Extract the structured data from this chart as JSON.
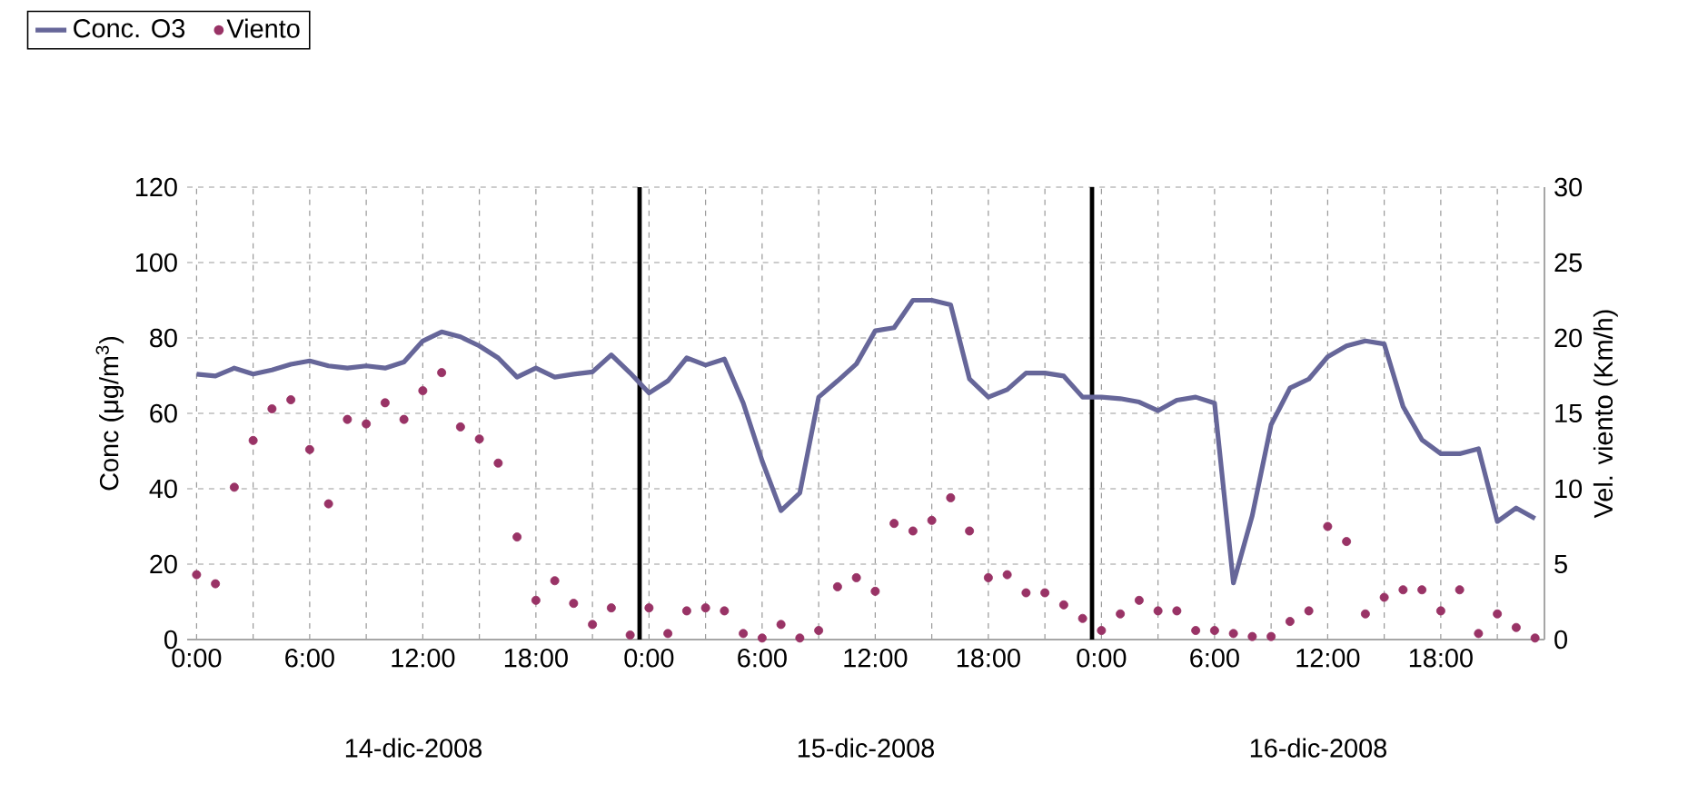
{
  "chart_data": {
    "type": "line",
    "ylabel": "Conc (μg/m$^{3}$)",
    "y2label": "Vel. viento (Km/h)",
    "annotations": [
      "14-dic-2008",
      "15-dic-2008",
      "16-dic-2008"
    ],
    "x": [
      "2008-12-14T00:00",
      "2008-12-14T01:00",
      "2008-12-14T02:00",
      "2008-12-14T03:00",
      "2008-12-14T04:00",
      "2008-12-14T05:00",
      "2008-12-14T06:00",
      "2008-12-14T07:00",
      "2008-12-14T08:00",
      "2008-12-14T09:00",
      "2008-12-14T10:00",
      "2008-12-14T11:00",
      "2008-12-14T12:00",
      "2008-12-14T13:00",
      "2008-12-14T14:00",
      "2008-12-14T15:00",
      "2008-12-14T16:00",
      "2008-12-14T17:00",
      "2008-12-14T18:00",
      "2008-12-14T19:00",
      "2008-12-14T20:00",
      "2008-12-14T21:00",
      "2008-12-14T22:00",
      "2008-12-14T23:00",
      "2008-12-15T00:00",
      "2008-12-15T01:00",
      "2008-12-15T02:00",
      "2008-12-15T03:00",
      "2008-12-15T04:00",
      "2008-12-15T05:00",
      "2008-12-15T06:00",
      "2008-12-15T07:00",
      "2008-12-15T08:00",
      "2008-12-15T09:00",
      "2008-12-15T10:00",
      "2008-12-15T11:00",
      "2008-12-15T12:00",
      "2008-12-15T13:00",
      "2008-12-15T14:00",
      "2008-12-15T15:00",
      "2008-12-15T16:00",
      "2008-12-15T17:00",
      "2008-12-15T18:00",
      "2008-12-15T19:00",
      "2008-12-15T20:00",
      "2008-12-15T21:00",
      "2008-12-15T22:00",
      "2008-12-15T23:00",
      "2008-12-16T00:00",
      "2008-12-16T01:00",
      "2008-12-16T02:00",
      "2008-12-16T03:00",
      "2008-12-16T04:00",
      "2008-12-16T05:00",
      "2008-12-16T06:00",
      "2008-12-16T07:00",
      "2008-12-16T08:00",
      "2008-12-16T09:00",
      "2008-12-16T10:00",
      "2008-12-16T11:00",
      "2008-12-16T12:00",
      "2008-12-16T13:00",
      "2008-12-16T14:00",
      "2008-12-16T15:00",
      "2008-12-16T16:00",
      "2008-12-16T17:00",
      "2008-12-16T18:00",
      "2008-12-16T19:00",
      "2008-12-16T20:00",
      "2008-12-16T21:00",
      "2008-12-16T22:00",
      "2008-12-16T23:00"
    ],
    "series": [
      {
        "name": "Conc. O3",
        "color": "#666699",
        "marker": "none",
        "values": [
          70.4,
          69.9,
          72,
          70.4,
          71.5,
          73,
          73.9,
          72.6,
          72,
          72.6,
          72,
          73.6,
          79.2,
          81.6,
          80.3,
          77.9,
          74.7,
          69.6,
          72,
          69.6,
          70.4,
          71,
          75.5,
          70.7,
          65.4,
          68.6,
          74.7,
          72.8,
          74.4,
          62.7,
          47.4,
          34.2,
          38.9,
          64.3,
          68.6,
          73.1,
          81.9,
          82.7,
          90,
          90,
          88.8,
          69.1,
          64.3,
          66.3,
          70.7,
          70.7,
          69.9,
          64.3,
          64.3,
          63.9,
          63,
          60.7,
          63.5,
          64.3,
          62.7,
          15,
          32.9,
          57,
          66.7,
          69.1,
          75,
          77.9,
          79.2,
          78.4,
          61.8,
          53,
          49.3,
          49.3,
          50.6,
          31.3,
          34.9,
          32.1
        ]
      },
      {
        "name": "Viento",
        "type": "scatter",
        "axis": "y2",
        "color": "#993366",
        "marker": "circle",
        "values": [
          4.3,
          3.7,
          10.1,
          13.2,
          15.3,
          15.9,
          12.6,
          9.0,
          14.6,
          14.3,
          15.7,
          14.6,
          16.5,
          17.7,
          14.1,
          13.3,
          11.7,
          6.8,
          2.6,
          3.9,
          2.4,
          1.0,
          2.1,
          0.3,
          2.1,
          0.4,
          1.9,
          2.1,
          1.9,
          0.4,
          0.1,
          1.0,
          0.1,
          0.6,
          3.5,
          4.1,
          3.2,
          7.7,
          7.2,
          7.9,
          9.4,
          7.2,
          4.1,
          4.3,
          3.1,
          3.1,
          2.3,
          1.4,
          0.6,
          1.7,
          2.6,
          1.9,
          1.9,
          0.6,
          0.6,
          0.4,
          0.2,
          0.2,
          1.2,
          1.9,
          7.5,
          6.5,
          1.7,
          2.8,
          3.3,
          3.3,
          1.9,
          3.3,
          0.4,
          1.7,
          0.8,
          0.1
        ]
      }
    ],
    "xlim": [
      "2008-12-13T23:30",
      "2008-12-16T23:30"
    ],
    "xticks": [
      {
        "value": "2008-12-14T00:00",
        "label": "0:00"
      },
      {
        "value": "2008-12-14T03:00",
        "label": null
      },
      {
        "value": "2008-12-14T06:00",
        "label": "6:00"
      },
      {
        "value": "2008-12-14T09:00",
        "label": null
      },
      {
        "value": "2008-12-14T12:00",
        "label": "12:00"
      },
      {
        "value": "2008-12-14T15:00",
        "label": null
      },
      {
        "value": "2008-12-14T18:00",
        "label": "18:00"
      },
      {
        "value": "2008-12-14T21:00",
        "label": null
      },
      {
        "value": "2008-12-15T00:00",
        "label": "0:00"
      },
      {
        "value": "2008-12-15T03:00",
        "label": null
      },
      {
        "value": "2008-12-15T06:00",
        "label": "6:00"
      },
      {
        "value": "2008-12-15T09:00",
        "label": null
      },
      {
        "value": "2008-12-15T12:00",
        "label": "12:00"
      },
      {
        "value": "2008-12-15T15:00",
        "label": null
      },
      {
        "value": "2008-12-15T18:00",
        "label": "18:00"
      },
      {
        "value": "2008-12-15T21:00",
        "label": null
      },
      {
        "value": "2008-12-16T00:00",
        "label": "0:00"
      },
      {
        "value": "2008-12-16T03:00",
        "label": null
      },
      {
        "value": "2008-12-16T06:00",
        "label": "6:00"
      },
      {
        "value": "2008-12-16T09:00",
        "label": null
      },
      {
        "value": "2008-12-16T12:00",
        "label": "12:00"
      },
      {
        "value": "2008-12-16T15:00",
        "label": null
      },
      {
        "value": "2008-12-16T18:00",
        "label": "18:00"
      },
      {
        "value": "2008-12-16T21:00",
        "label": null
      }
    ],
    "ylim": [
      0,
      120
    ],
    "yticks": [
      0,
      20,
      40,
      60,
      80,
      100,
      120
    ],
    "y2lim": [
      0,
      30
    ],
    "y2ticks": [
      0,
      5,
      10,
      15,
      20,
      25,
      30
    ],
    "ref_lines": [
      {
        "axis": "x",
        "value": "2008-12-14T23:30",
        "color": "#000000"
      },
      {
        "axis": "x",
        "value": "2008-12-15T23:30",
        "color": "#000000"
      }
    ],
    "grid": true,
    "legend": "top left"
  }
}
